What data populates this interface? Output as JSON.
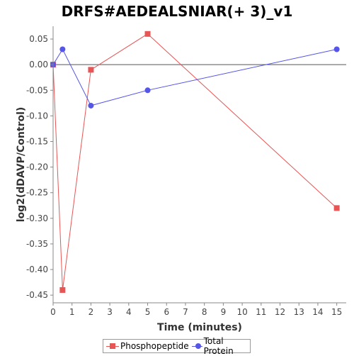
{
  "chart_data": {
    "type": "line",
    "title": "DRFS#AEDEALSNIAR(+ 3)_v1",
    "xlabel": "Time (minutes)",
    "ylabel": "log2(dDAVP/Control)",
    "xlim": [
      0,
      15.5
    ],
    "ylim": [
      -0.465,
      0.075
    ],
    "xticks": [
      0,
      1,
      2,
      3,
      4,
      5,
      6,
      7,
      8,
      9,
      10,
      11,
      12,
      13,
      14,
      15
    ],
    "yticks": [
      0.05,
      0.0,
      -0.05,
      -0.1,
      -0.15,
      -0.2,
      -0.25,
      -0.3,
      -0.35,
      -0.4,
      -0.45
    ],
    "ytick_labels": [
      "0.05",
      "0.00",
      "-0.05",
      "-0.10",
      "-0.15",
      "-0.20",
      "-0.25",
      "-0.30",
      "-0.35",
      "-0.40",
      "-0.45"
    ],
    "zero_line": true,
    "grid": false,
    "legend_position": "bottom",
    "series": [
      {
        "name": "Phosphopeptide",
        "color": "#e85555",
        "marker": "square",
        "x": [
          0,
          0.5,
          2,
          5,
          15
        ],
        "y": [
          0.0,
          -0.44,
          -0.01,
          0.06,
          -0.28
        ]
      },
      {
        "name": "Total Protein",
        "color": "#5555e8",
        "marker": "circle",
        "x": [
          0,
          0.5,
          2,
          5,
          15
        ],
        "y": [
          0.0,
          0.03,
          -0.08,
          -0.05,
          0.03
        ]
      }
    ]
  }
}
